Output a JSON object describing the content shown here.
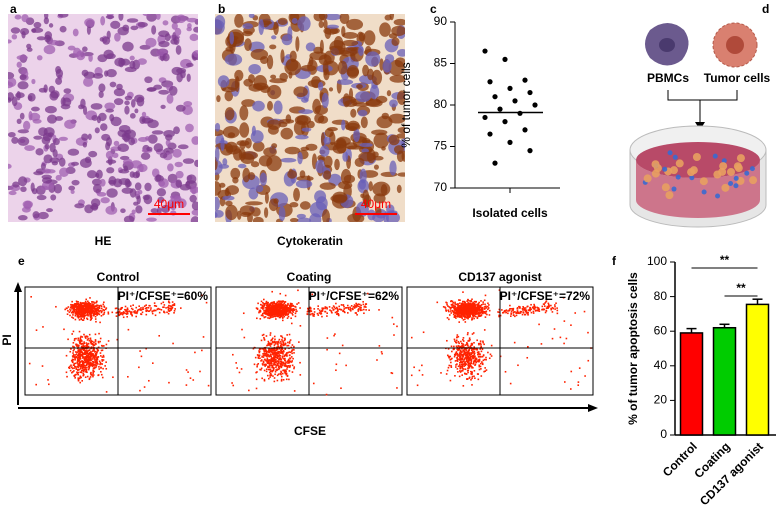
{
  "labels": [
    "a",
    "b",
    "c",
    "d",
    "e",
    "f"
  ],
  "images": [
    {
      "caption": "HE",
      "scale": "40μm"
    },
    {
      "caption": "Cytokeratin",
      "scale": "40μm"
    }
  ],
  "diagram": {
    "nodes": [
      "PBMCs",
      "Tumor cells"
    ]
  },
  "flow": {
    "panels": [
      {
        "title": "Control",
        "label": "PI⁺/CFSE⁺=60%"
      },
      {
        "title": "Coating",
        "label": "PI⁺/CFSE⁺=62%"
      },
      {
        "title": "CD137 agonist",
        "label": "PI⁺/CFSE⁺=72%"
      }
    ],
    "ylabel": "PI",
    "xlabel": "CFSE"
  },
  "chart_data": [
    {
      "type": "strip",
      "ylabel": "% of tumor cells",
      "categories": [
        "Isolated cells"
      ],
      "values": [
        86.5,
        85.5,
        83.0,
        82.8,
        82.0,
        81.5,
        81.0,
        80.5,
        80.0,
        79.5,
        79.0,
        78.5,
        78.0,
        77.0,
        76.5,
        75.5,
        74.5,
        73.0
      ],
      "mean": 79.1,
      "color": "#000000",
      "ylim": [
        70,
        90
      ],
      "yticks": [
        70,
        75,
        80,
        85,
        90
      ]
    },
    {
      "type": "bar",
      "ylabel": "% of tumor apoptosis cells",
      "categories": [
        "Control",
        "Coating",
        "CD137 agonist"
      ],
      "values": [
        59,
        62,
        75.5
      ],
      "errors": [
        2.5,
        2,
        3
      ],
      "colors": [
        "#ff0000",
        "#00cc00",
        "#ffff00"
      ],
      "ylim": [
        0,
        100
      ],
      "yticks": [
        0,
        20,
        40,
        60,
        80,
        100
      ],
      "annotations": [
        {
          "label": "**",
          "from": 0,
          "to": 2
        },
        {
          "label": "**",
          "from": 1,
          "to": 2
        }
      ]
    }
  ]
}
